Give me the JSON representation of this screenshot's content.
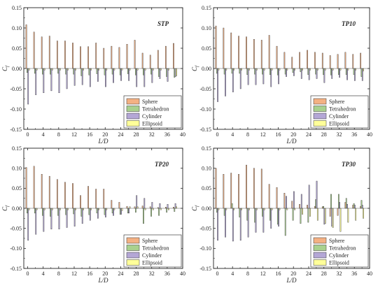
{
  "legend_entries": [
    {
      "name": "Sphere",
      "color": "#f4b183"
    },
    {
      "name": "Tetrahedron",
      "color": "#a9d18e"
    },
    {
      "name": "Cylinder",
      "color": "#b4a7d6"
    },
    {
      "name": "Ellipsoid",
      "color": "#ffff99"
    }
  ],
  "chart_data": [
    {
      "type": "bar",
      "title": "STP",
      "xlabel": "L/D",
      "ylabel": "Cf",
      "xlim": [
        -1,
        40
      ],
      "ylim": [
        -0.15,
        0.15
      ],
      "x_ticks": [
        0,
        4,
        8,
        12,
        16,
        20,
        24,
        28,
        32,
        36,
        40
      ],
      "y_ticks": [
        -0.15,
        -0.1,
        -0.05,
        0.0,
        0.05,
        0.1,
        0.15
      ],
      "grid": false,
      "legend_position": "bottom-right",
      "x": [
        0,
        2,
        4,
        6,
        8,
        10,
        12,
        14,
        16,
        18,
        20,
        22,
        24,
        26,
        28,
        30,
        32,
        34,
        36,
        38
      ],
      "series": [
        {
          "name": "Sphere",
          "values": [
            0.108,
            0.09,
            0.078,
            0.08,
            0.068,
            0.068,
            0.063,
            0.054,
            0.054,
            0.063,
            0.05,
            0.055,
            0.052,
            0.06,
            0.07,
            0.038,
            0.033,
            0.045,
            0.055,
            0.062
          ]
        },
        {
          "name": "Tetrahedron",
          "values": [
            -0.01,
            -0.012,
            -0.014,
            -0.014,
            -0.012,
            -0.014,
            -0.014,
            -0.018,
            -0.016,
            -0.013,
            -0.016,
            -0.014,
            -0.016,
            -0.013,
            -0.016,
            -0.016,
            -0.014,
            -0.02,
            -0.02,
            -0.022
          ]
        },
        {
          "name": "Cylinder",
          "values": [
            -0.088,
            -0.065,
            -0.06,
            -0.055,
            -0.06,
            -0.05,
            -0.042,
            -0.04,
            -0.045,
            -0.032,
            -0.045,
            -0.035,
            -0.03,
            -0.03,
            -0.045,
            -0.045,
            -0.035,
            -0.025,
            -0.032,
            -0.02
          ]
        },
        {
          "name": "Ellipsoid",
          "values": [
            -0.004,
            -0.004,
            -0.004,
            -0.004,
            -0.004,
            -0.004,
            -0.004,
            -0.004,
            -0.004,
            -0.004,
            -0.004,
            -0.004,
            -0.004,
            -0.004,
            -0.004,
            -0.004,
            -0.004,
            -0.004,
            -0.004,
            -0.018
          ]
        }
      ]
    },
    {
      "type": "bar",
      "title": "TP10",
      "xlabel": "L/D",
      "ylabel": "Cf",
      "xlim": [
        -1,
        40
      ],
      "ylim": [
        -0.15,
        0.15
      ],
      "x_ticks": [
        0,
        4,
        8,
        12,
        16,
        20,
        24,
        28,
        32,
        36,
        40
      ],
      "y_ticks": [
        -0.15,
        -0.1,
        -0.05,
        0.0,
        0.05,
        0.1,
        0.15
      ],
      "grid": false,
      "legend_position": "bottom-right",
      "x": [
        0,
        2,
        4,
        6,
        8,
        10,
        12,
        14,
        16,
        18,
        20,
        22,
        24,
        26,
        28,
        30,
        32,
        34,
        36,
        38
      ],
      "series": [
        {
          "name": "Sphere",
          "values": [
            0.105,
            0.1,
            0.088,
            0.08,
            0.078,
            0.072,
            0.07,
            0.082,
            0.055,
            0.04,
            0.028,
            0.04,
            0.045,
            0.04,
            0.038,
            0.032,
            0.035,
            0.04,
            0.035,
            0.038
          ]
        },
        {
          "name": "Tetrahedron",
          "values": [
            -0.012,
            -0.014,
            -0.012,
            -0.012,
            -0.015,
            -0.014,
            -0.014,
            -0.015,
            -0.016,
            -0.014,
            -0.01,
            -0.008,
            -0.015,
            -0.014,
            -0.015,
            -0.016,
            -0.015,
            -0.015,
            -0.015,
            -0.02
          ]
        },
        {
          "name": "Cylinder",
          "values": [
            -0.082,
            -0.068,
            -0.058,
            -0.05,
            -0.04,
            -0.04,
            -0.038,
            -0.045,
            -0.038,
            -0.02,
            -0.018,
            -0.025,
            -0.028,
            -0.025,
            -0.035,
            -0.025,
            -0.022,
            -0.028,
            -0.03,
            -0.03
          ]
        },
        {
          "name": "Ellipsoid",
          "values": [
            -0.004,
            -0.004,
            -0.004,
            -0.004,
            -0.004,
            -0.004,
            -0.004,
            -0.004,
            -0.004,
            -0.004,
            -0.004,
            -0.004,
            -0.004,
            -0.004,
            -0.004,
            -0.004,
            -0.004,
            -0.004,
            -0.004,
            -0.006
          ]
        }
      ]
    },
    {
      "type": "bar",
      "title": "TP20",
      "xlabel": "L/D",
      "ylabel": "Cf",
      "xlim": [
        -1,
        40
      ],
      "ylim": [
        -0.15,
        0.15
      ],
      "x_ticks": [
        0,
        4,
        8,
        12,
        16,
        20,
        24,
        28,
        32,
        36,
        40
      ],
      "y_ticks": [
        -0.15,
        -0.1,
        -0.05,
        0.0,
        0.05,
        0.1,
        0.15
      ],
      "grid": false,
      "legend_position": "bottom-right",
      "x": [
        0,
        2,
        4,
        6,
        8,
        10,
        12,
        14,
        16,
        18,
        20,
        22,
        24,
        26,
        28,
        30,
        32,
        34,
        36,
        38
      ],
      "series": [
        {
          "name": "Sphere",
          "values": [
            0.102,
            0.105,
            0.085,
            0.08,
            0.072,
            0.065,
            0.062,
            0.032,
            0.055,
            0.048,
            0.048,
            0.02,
            0.015,
            0.005,
            0.004,
            0.006,
            0.004,
            0.002,
            0.003,
            0.003
          ]
        },
        {
          "name": "Tetrahedron",
          "values": [
            -0.012,
            -0.012,
            -0.018,
            -0.02,
            -0.018,
            -0.016,
            -0.014,
            -0.02,
            -0.016,
            -0.012,
            -0.016,
            -0.012,
            -0.015,
            -0.012,
            -0.01,
            -0.038,
            -0.02,
            -0.018,
            -0.01,
            -0.008
          ]
        },
        {
          "name": "Cylinder",
          "values": [
            -0.08,
            -0.065,
            -0.058,
            -0.052,
            -0.052,
            -0.048,
            -0.045,
            -0.038,
            -0.03,
            -0.025,
            -0.022,
            -0.018,
            -0.015,
            -0.012,
            0.032,
            0.025,
            0.015,
            0.012,
            0.01,
            0.012
          ]
        },
        {
          "name": "Ellipsoid",
          "values": [
            -0.004,
            -0.004,
            -0.004,
            -0.004,
            -0.004,
            -0.004,
            -0.004,
            -0.004,
            -0.004,
            -0.004,
            -0.004,
            -0.004,
            -0.006,
            0.004,
            0.004,
            -0.004,
            -0.004,
            -0.004,
            -0.004,
            0.004
          ]
        }
      ]
    },
    {
      "type": "bar",
      "title": "TP30",
      "xlabel": "L/D",
      "ylabel": "Cf",
      "xlim": [
        -1,
        40
      ],
      "ylim": [
        -0.15,
        0.15
      ],
      "x_ticks": [
        0,
        4,
        8,
        12,
        16,
        20,
        24,
        28,
        32,
        36,
        40
      ],
      "y_ticks": [
        -0.15,
        -0.1,
        -0.05,
        0.0,
        0.05,
        0.1,
        0.15
      ],
      "grid": false,
      "legend_position": "bottom-right",
      "x": [
        0,
        2,
        4,
        6,
        8,
        10,
        12,
        14,
        16,
        18,
        20,
        22,
        24,
        26,
        28,
        30,
        32,
        34,
        36,
        38
      ],
      "series": [
        {
          "name": "Sphere",
          "values": [
            0.1,
            0.085,
            0.088,
            0.085,
            0.108,
            0.1,
            0.098,
            0.06,
            0.052,
            0.038,
            0.018,
            0.01,
            0.008,
            0.005,
            0.004,
            -0.02,
            -0.018,
            0.015,
            0.008,
            0.005
          ]
        },
        {
          "name": "Tetrahedron",
          "values": [
            -0.01,
            -0.018,
            0.012,
            -0.022,
            -0.03,
            -0.035,
            -0.02,
            -0.03,
            -0.04,
            -0.068,
            -0.03,
            -0.038,
            -0.035,
            0.022,
            0.005,
            0.035,
            0.035,
            0.025,
            0.012,
            0.02
          ]
        },
        {
          "name": "Cylinder",
          "values": [
            -0.08,
            -0.072,
            -0.082,
            -0.08,
            -0.072,
            -0.06,
            -0.06,
            -0.05,
            -0.045,
            0.03,
            0.042,
            0.035,
            0.058,
            0.068,
            -0.04,
            -0.045,
            0.015,
            0.01,
            0.008,
            0.008
          ]
        },
        {
          "name": "Ellipsoid",
          "values": [
            -0.004,
            -0.004,
            -0.004,
            -0.004,
            -0.004,
            -0.004,
            -0.004,
            -0.004,
            -0.004,
            -0.004,
            -0.004,
            -0.015,
            -0.02,
            -0.03,
            -0.038,
            -0.048,
            -0.058,
            -0.035,
            -0.03,
            -0.025
          ]
        }
      ]
    }
  ]
}
